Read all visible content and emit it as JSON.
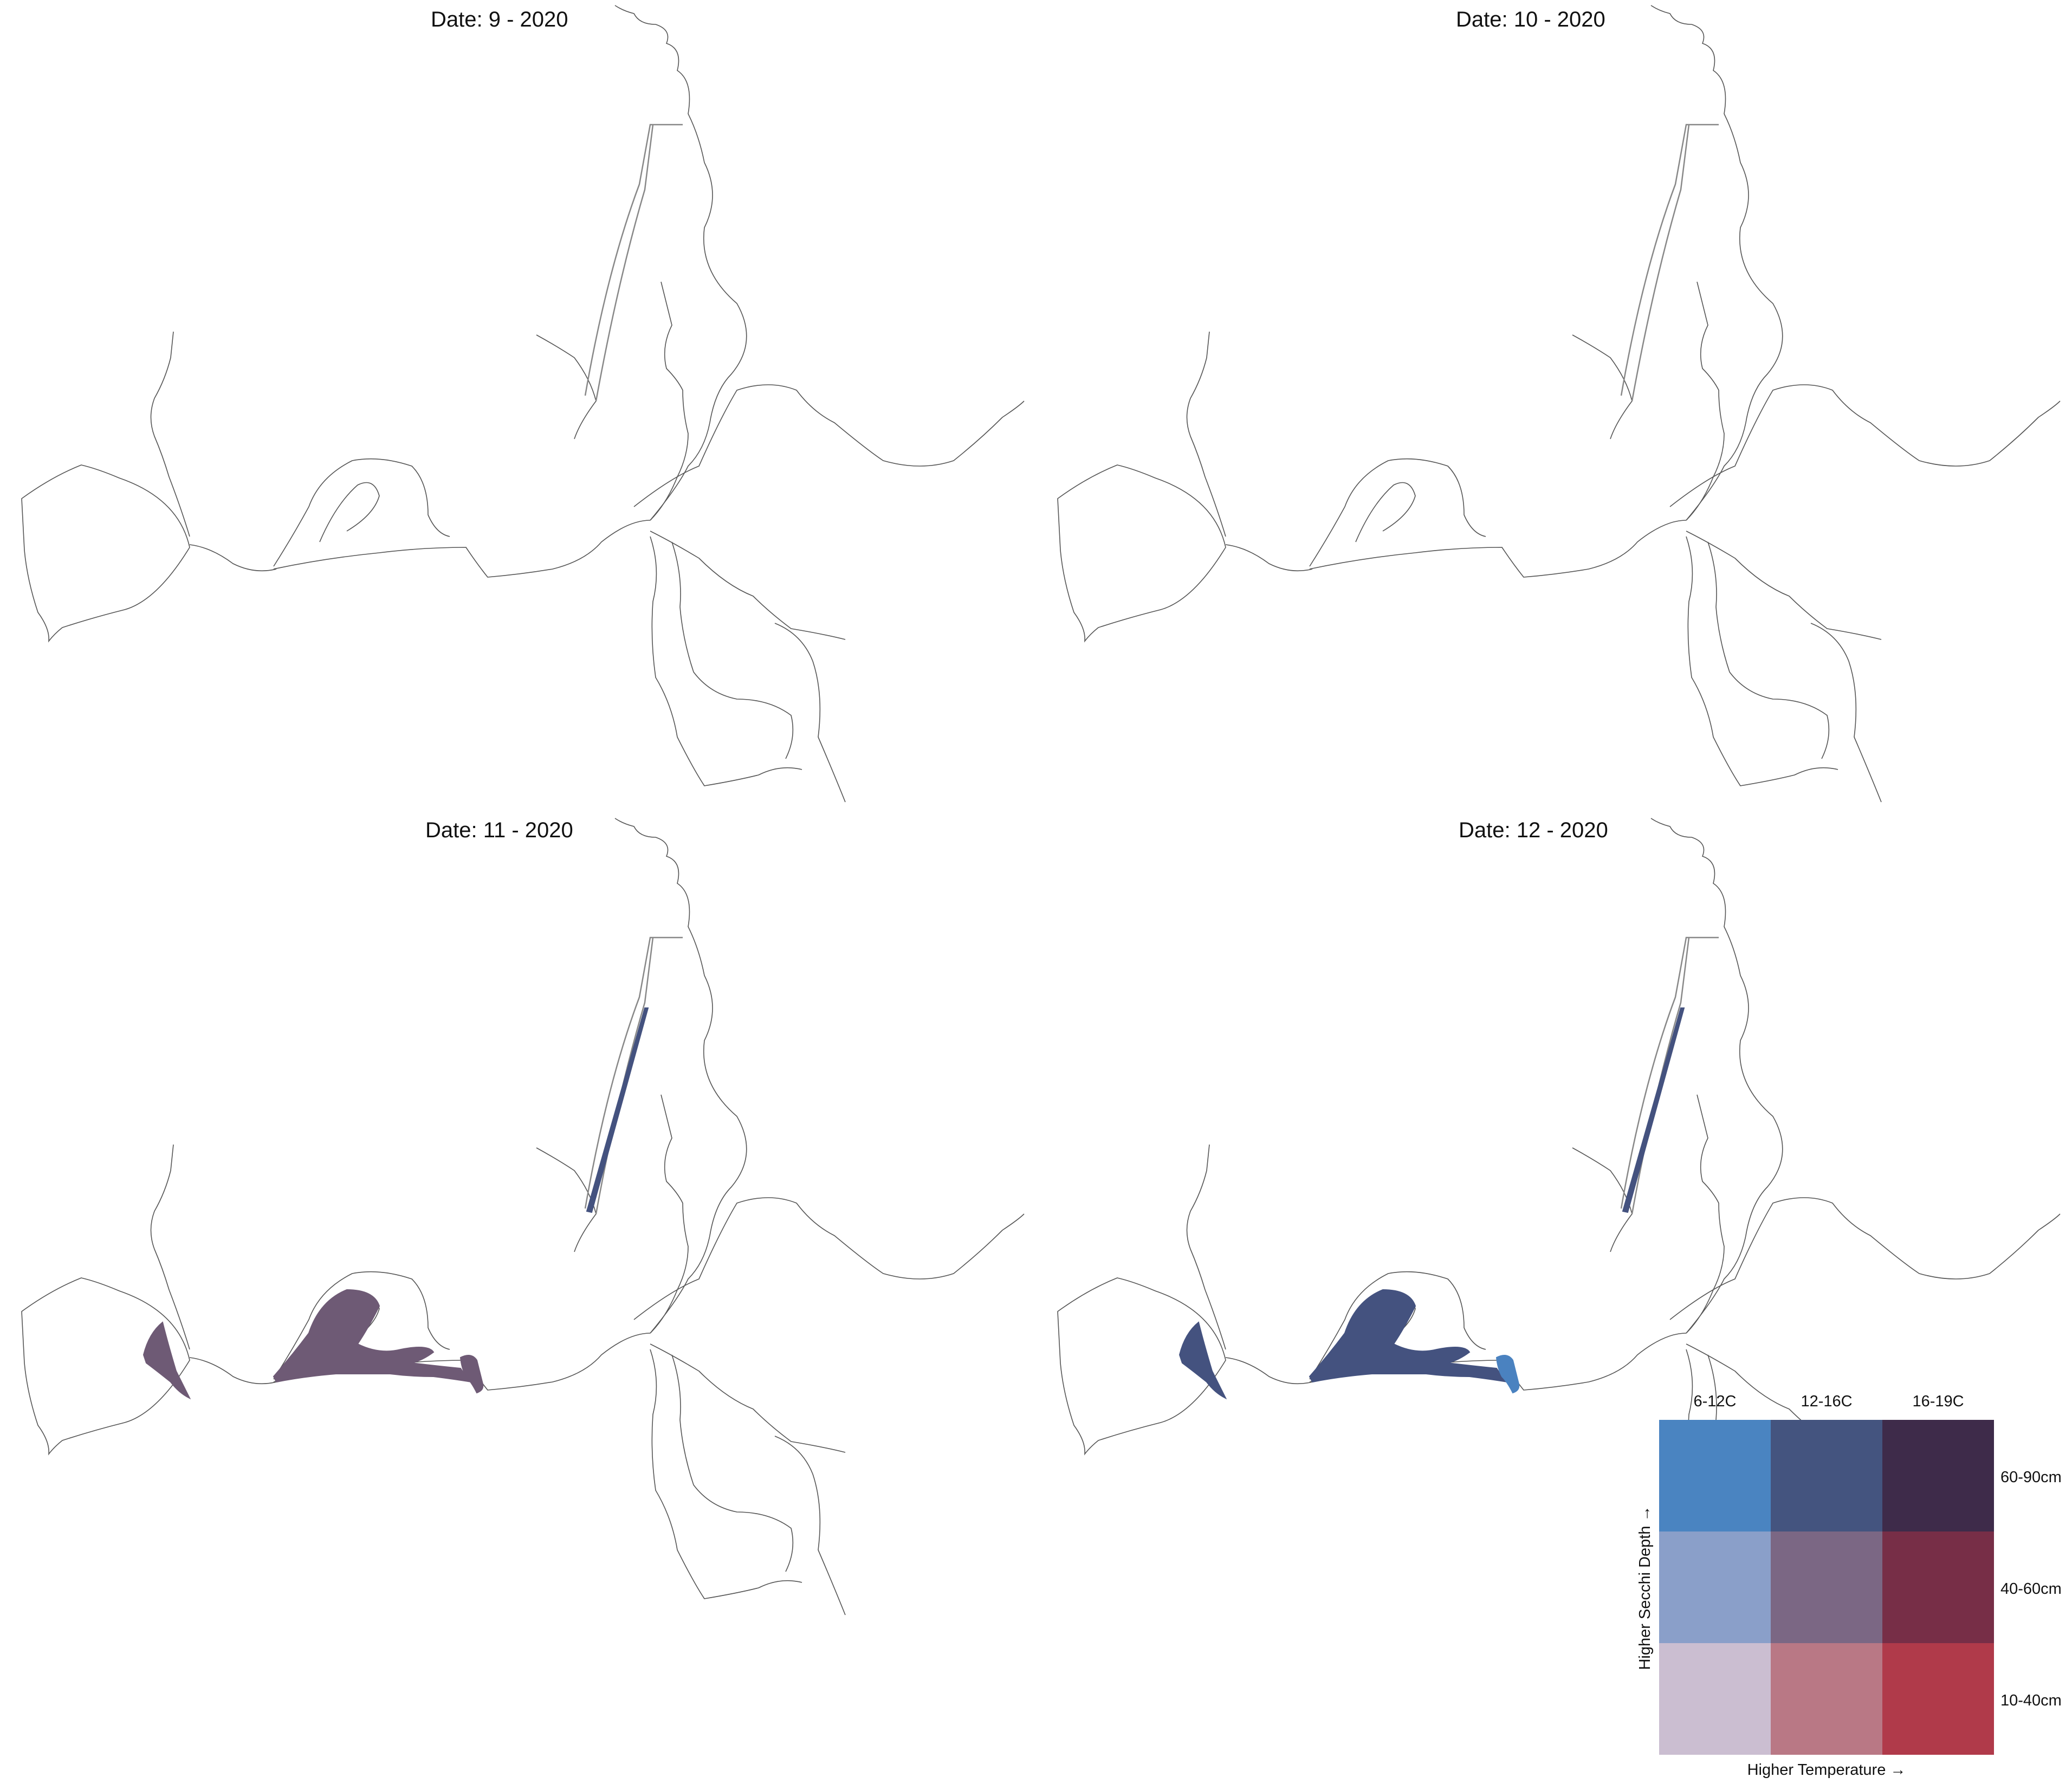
{
  "panels": [
    {
      "title": "Date: 9 - 2020",
      "fills": {
        "lake_west": null,
        "lake_main": null,
        "channel_east": null,
        "canal": null
      }
    },
    {
      "title": "Date: 10 - 2020",
      "fills": {
        "lake_west": null,
        "lake_main": null,
        "channel_east": null,
        "canal": null
      }
    },
    {
      "title": "Date: 11 - 2020",
      "fills": {
        "lake_west": "#6e5a75",
        "lake_main": "#6e5a75",
        "channel_east": "#6e5a75",
        "canal": "#44527f"
      }
    },
    {
      "title": "Date: 12 - 2020",
      "fills": {
        "lake_west": "#44527f",
        "lake_main": "#44527f",
        "channel_east": "#4a82c0",
        "canal": "#44527f"
      }
    }
  ],
  "legend": {
    "columns": [
      "6-12C",
      "12-16C",
      "16-19C"
    ],
    "rows": [
      "60-90cm",
      "40-60cm",
      "10-40cm"
    ],
    "colors": [
      [
        "#4a84c1",
        "#44547f",
        "#3e2b4a"
      ],
      [
        "#8a9fc9",
        "#7b6784",
        "#772e47"
      ],
      [
        "#cbbed1",
        "#b97885",
        "#b03a4a"
      ]
    ],
    "x_axis_label": "Higher Temperature →",
    "y_axis_label": "Higher Secchi Depth →"
  }
}
